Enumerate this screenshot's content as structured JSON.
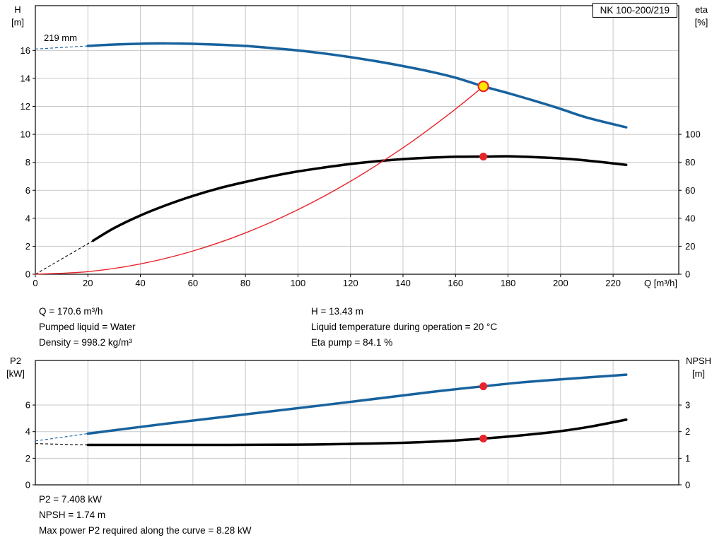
{
  "colors": {
    "curve_blue": "#17629e",
    "curve_black": "#000000",
    "curve_red": "#e8232a",
    "marker_yellow": "#ffe600",
    "grid": "#c8c8c8",
    "axis": "#000000"
  },
  "info_top": {
    "left": [
      "Q = 170.6 m³/h",
      "Pumped liquid = Water",
      "Density = 998.2 kg/m³"
    ],
    "right": [
      "H = 13.43 m",
      "Liquid temperature during operation = 20 °C",
      "Eta pump = 84.1 %"
    ]
  },
  "info_bottom": [
    "P2 = 7.408 kW",
    "NPSH = 1.74 m",
    "Max power P2 required along the curve = 8.28 kW"
  ],
  "chart_data": [
    {
      "type": "line",
      "title": "NK 100-200/219",
      "impeller_label": "219 mm",
      "xlabel": "Q [m³/h]",
      "ylabel": "H [m]",
      "ylabel_left_lines": [
        "H",
        "[m]"
      ],
      "ylabel_right_lines": [
        "eta",
        "[%]"
      ],
      "xlim": [
        0,
        245
      ],
      "ylim_left": [
        0,
        19.2
      ],
      "right_to_left_factor": 0.1,
      "x_ticks": [
        0,
        20,
        40,
        60,
        80,
        100,
        120,
        140,
        160,
        180,
        200,
        220
      ],
      "y_ticks_left": [
        0,
        2,
        4,
        6,
        8,
        10,
        12,
        14,
        16
      ],
      "y_ticks_right": [
        0,
        20,
        40,
        60,
        80,
        100
      ],
      "grid": true,
      "series": [
        {
          "name": "head-curve",
          "label": "H (219 mm)",
          "axis": "left",
          "color_key": "curve_blue",
          "width": 3.5,
          "lead": [
            [
              0,
              16.1
            ],
            [
              20,
              16.32
            ]
          ],
          "points": [
            [
              20,
              16.32
            ],
            [
              30,
              16.42
            ],
            [
              40,
              16.48
            ],
            [
              50,
              16.5
            ],
            [
              60,
              16.47
            ],
            [
              70,
              16.41
            ],
            [
              80,
              16.32
            ],
            [
              90,
              16.17
            ],
            [
              100,
              16.0
            ],
            [
              110,
              15.78
            ],
            [
              120,
              15.52
            ],
            [
              130,
              15.22
            ],
            [
              140,
              14.88
            ],
            [
              150,
              14.5
            ],
            [
              160,
              14.05
            ],
            [
              170.6,
              13.43
            ],
            [
              180,
              12.95
            ],
            [
              190,
              12.4
            ],
            [
              200,
              11.82
            ],
            [
              210,
              11.2
            ],
            [
              225,
              10.5
            ]
          ]
        },
        {
          "name": "eta-curve",
          "label": "eta pump",
          "axis": "right",
          "color_key": "curve_black",
          "width": 3.5,
          "lead": [
            [
              0,
              0
            ],
            [
              22,
              24
            ]
          ],
          "points": [
            [
              22,
              24
            ],
            [
              30,
              33
            ],
            [
              40,
              42
            ],
            [
              50,
              49.5
            ],
            [
              60,
              56
            ],
            [
              70,
              61.5
            ],
            [
              80,
              66
            ],
            [
              90,
              70
            ],
            [
              100,
              73.5
            ],
            [
              110,
              76.3
            ],
            [
              120,
              78.8
            ],
            [
              130,
              80.8
            ],
            [
              140,
              82.3
            ],
            [
              150,
              83.3
            ],
            [
              160,
              84.0
            ],
            [
              170.6,
              84.1
            ],
            [
              180,
              84.3
            ],
            [
              190,
              83.7
            ],
            [
              200,
              82.8
            ],
            [
              210,
              81.3
            ],
            [
              225,
              78.2
            ]
          ]
        },
        {
          "name": "system-curve",
          "label": "resistance curve to duty point",
          "axis": "left",
          "color_key": "curve_red",
          "width": 1.4,
          "points": [
            [
              0,
              0
            ],
            [
              20,
              0.185
            ],
            [
              40,
              0.738
            ],
            [
              60,
              1.661
            ],
            [
              80,
              2.953
            ],
            [
              100,
              4.614
            ],
            [
              120,
              6.644
            ],
            [
              140,
              9.043
            ],
            [
              155,
              11.085
            ],
            [
              163,
              12.258
            ],
            [
              170.6,
              13.43
            ]
          ]
        }
      ],
      "markers": [
        {
          "name": "duty-point",
          "x": 170.6,
          "y": 13.43,
          "axis": "left",
          "style": "operating"
        },
        {
          "name": "eta-duty-point",
          "x": 170.6,
          "y": 84.1,
          "axis": "right",
          "style": "dot"
        }
      ]
    },
    {
      "type": "line",
      "title": "",
      "xlabel": "",
      "ylabel": "P2 [kW]",
      "ylabel_left_lines": [
        "P2",
        "[kW]"
      ],
      "ylabel_right_lines": [
        "NPSH",
        "[m]"
      ],
      "xlim": [
        0,
        245
      ],
      "ylim_left": [
        0,
        9.35
      ],
      "right_to_left_factor": 2,
      "x_ticks": [
        0,
        20,
        40,
        60,
        80,
        100,
        120,
        140,
        160,
        180,
        200,
        220
      ],
      "y_ticks_left": [
        0,
        2,
        4,
        6
      ],
      "y_ticks_right": [
        0,
        1,
        2,
        3
      ],
      "grid": true,
      "series": [
        {
          "name": "p2-curve",
          "label": "P2",
          "axis": "left",
          "color_key": "curve_blue",
          "width": 3.5,
          "lead": [
            [
              0,
              3.3
            ],
            [
              20,
              3.85
            ]
          ],
          "points": [
            [
              20,
              3.85
            ],
            [
              50,
              4.6
            ],
            [
              80,
              5.3
            ],
            [
              110,
              6.0
            ],
            [
              140,
              6.72
            ],
            [
              155,
              7.08
            ],
            [
              170.6,
              7.408
            ],
            [
              185,
              7.7
            ],
            [
              200,
              7.93
            ],
            [
              212,
              8.1
            ],
            [
              225,
              8.28
            ]
          ]
        },
        {
          "name": "npsh-curve",
          "label": "NPSH",
          "axis": "right",
          "color_key": "curve_black",
          "width": 3.5,
          "lead": [
            [
              0,
              1.55
            ],
            [
              20,
              1.5
            ]
          ],
          "points": [
            [
              20,
              1.5
            ],
            [
              60,
              1.5
            ],
            [
              100,
              1.51
            ],
            [
              120,
              1.54
            ],
            [
              140,
              1.58
            ],
            [
              155,
              1.64
            ],
            [
              170.6,
              1.74
            ],
            [
              185,
              1.86
            ],
            [
              200,
              2.02
            ],
            [
              212,
              2.2
            ],
            [
              225,
              2.45
            ]
          ]
        }
      ],
      "markers": [
        {
          "name": "p2-duty-point",
          "x": 170.6,
          "y": 7.408,
          "axis": "left",
          "style": "dot"
        },
        {
          "name": "npsh-duty-point",
          "x": 170.6,
          "y": 1.74,
          "axis": "right",
          "style": "dot"
        }
      ]
    }
  ]
}
